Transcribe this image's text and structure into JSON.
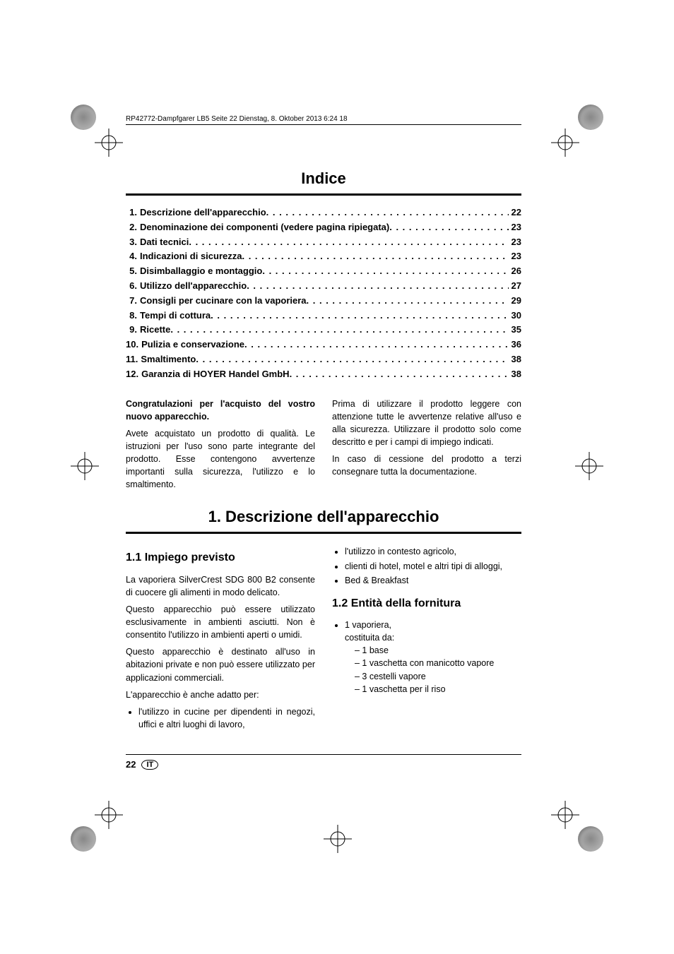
{
  "print_header": "RP42772-Dampfgarer LB5  Seite 22  Dienstag, 8. Oktober 2013  6:24 18",
  "index": {
    "title": "Indice",
    "items": [
      {
        "num": "1.",
        "label": "Descrizione dell'apparecchio",
        "page": "22"
      },
      {
        "num": "2.",
        "label": "Denominazione dei componenti (vedere pagina ripiegata)",
        "page": "23"
      },
      {
        "num": "3.",
        "label": "Dati tecnici",
        "page": "23"
      },
      {
        "num": "4.",
        "label": "Indicazioni di sicurezza",
        "page": "23"
      },
      {
        "num": "5.",
        "label": "Disimballaggio e montaggio",
        "page": "26"
      },
      {
        "num": "6.",
        "label": "Utilizzo dell'apparecchio",
        "page": "27"
      },
      {
        "num": "7.",
        "label": "Consigli per cucinare con la vaporiera",
        "page": "29"
      },
      {
        "num": "8.",
        "label": "Tempi di cottura",
        "page": "30"
      },
      {
        "num": "9.",
        "label": "Ricette",
        "page": "35"
      },
      {
        "num": "10.",
        "label": "Pulizia e conservazione",
        "page": "36"
      },
      {
        "num": "11.",
        "label": "Smaltimento",
        "page": "38"
      },
      {
        "num": "12.",
        "label": "Garanzia di HOYER Handel GmbH",
        "page": "38"
      }
    ]
  },
  "intro": {
    "congrats_title": "Congratulazioni per l'acquisto del vostro nuovo apparecchio.",
    "left_p": "Avete acquistato un prodotto di qualità. Le istruzioni per l'uso sono parte integrante del prodotto. Esse contengono avvertenze importanti sulla sicurezza, l'utilizzo e lo smaltimento.",
    "right_p1": "Prima di utilizzare il prodotto leggere con attenzione tutte le avvertenze relative all'uso e alla sicurezza. Utilizzare il prodotto solo come descritto e per i campi di impiego indicati.",
    "right_p2": "In caso di cessione del prodotto a terzi consegnare tutta la documentazione."
  },
  "section1": {
    "title": "1. Descrizione dell'apparecchio",
    "s11_title": "1.1 Impiego previsto",
    "s11_p1": "La vaporiera SilverCrest SDG 800 B2 consente di cuocere gli alimenti in modo delicato.",
    "s11_p2": "Questo apparecchio può essere utilizzato esclusivamente in ambienti asciutti. Non è consentito l'utilizzo in ambienti aperti o umidi.",
    "s11_p3": "Questo apparecchio è destinato all'uso in abitazioni private e non può essere utilizzato per applicazioni commerciali.",
    "s11_p4": "L'apparecchio è anche adatto per:",
    "s11_bullets_left": [
      "l'utilizzo in cucine per dipendenti in negozi, uffici e altri luoghi di lavoro,"
    ],
    "s11_bullets_right": [
      "l'utilizzo in contesto agricolo,",
      "clienti di hotel, motel e altri tipi di alloggi,",
      "Bed & Breakfast"
    ],
    "s12_title": "1.2 Entità della fornitura",
    "s12_bullet": "1 vaporiera,",
    "s12_sub_intro": "costituita da:",
    "s12_sub": [
      "– 1 base",
      "– 1 vaschetta con manicotto vapore",
      "– 3 cestelli vapore",
      "– 1 vaschetta per il riso"
    ]
  },
  "footer": {
    "page": "22",
    "lang": "IT"
  },
  "style": {
    "page_bg": "#ffffff",
    "text_color": "#000000",
    "rule_color": "#000000"
  }
}
